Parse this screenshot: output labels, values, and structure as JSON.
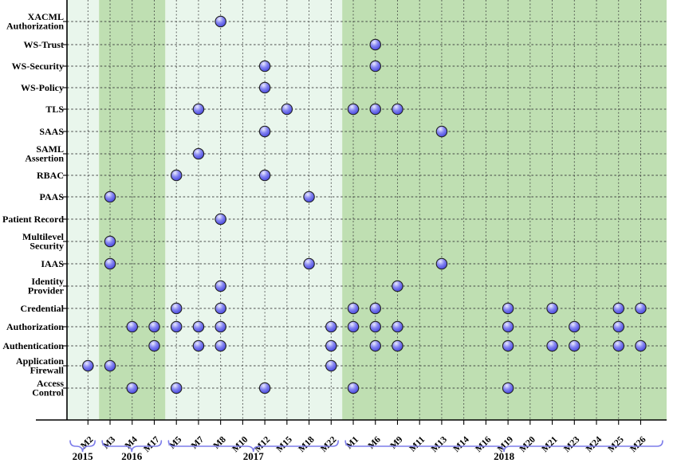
{
  "chart_data": {
    "type": "scatter",
    "title": "",
    "xlabel": "",
    "ylabel": "",
    "grid": "dashed",
    "legend": "none",
    "x_axis": {
      "milestones": [
        "M2",
        "M3",
        "M4",
        "M17",
        "M5",
        "M7",
        "M8",
        "M10",
        "M12",
        "M15",
        "M18",
        "M22",
        "M1",
        "M6",
        "M9",
        "M11",
        "M13",
        "M14",
        "M16",
        "M19",
        "M20",
        "M21",
        "M23",
        "M24",
        "M25",
        "M26"
      ],
      "year_groups": [
        {
          "label": "2015",
          "milestones": [
            "M2"
          ]
        },
        {
          "label": "2016",
          "milestones": [
            "M3",
            "M4",
            "M17"
          ]
        },
        {
          "label": "2017",
          "milestones": [
            "M5",
            "M7",
            "M8",
            "M10",
            "M12",
            "M15",
            "M18",
            "M22"
          ]
        },
        {
          "label": "2018",
          "milestones": [
            "M1",
            "M6",
            "M9",
            "M11",
            "M13",
            "M14",
            "M16",
            "M19",
            "M20",
            "M21",
            "M23",
            "M24",
            "M25",
            "M26"
          ]
        }
      ]
    },
    "y_axis": {
      "concepts": [
        {
          "name": "XACML Authorization",
          "label_lines": [
            "XACML",
            "Authorization"
          ]
        },
        {
          "name": "WS-Trust",
          "label_lines": [
            "WS-Trust"
          ]
        },
        {
          "name": "WS-Security",
          "label_lines": [
            "WS-Security"
          ]
        },
        {
          "name": "WS-Policy",
          "label_lines": [
            "WS-Policy"
          ]
        },
        {
          "name": "TLS",
          "label_lines": [
            "TLS"
          ]
        },
        {
          "name": "SAAS",
          "label_lines": [
            "SAAS"
          ]
        },
        {
          "name": "SAML Assertion",
          "label_lines": [
            "SAML",
            "Assertion"
          ]
        },
        {
          "name": "RBAC",
          "label_lines": [
            "RBAC"
          ]
        },
        {
          "name": "PAAS",
          "label_lines": [
            "PAAS"
          ]
        },
        {
          "name": "Patient Record",
          "label_lines": [
            "Patient Record"
          ]
        },
        {
          "name": "Multilevel Security",
          "label_lines": [
            "Multilevel",
            "Security"
          ]
        },
        {
          "name": "IAAS",
          "label_lines": [
            "IAAS"
          ]
        },
        {
          "name": "Identity Provider",
          "label_lines": [
            "Identity",
            "Provider"
          ]
        },
        {
          "name": "Credential",
          "label_lines": [
            "Credential"
          ]
        },
        {
          "name": "Authorization",
          "label_lines": [
            "Authorization"
          ]
        },
        {
          "name": "Authentication",
          "label_lines": [
            "Authentication"
          ]
        },
        {
          "name": "Application Firewall",
          "label_lines": [
            "Application",
            "Firewall"
          ]
        },
        {
          "name": "Access Control",
          "label_lines": [
            "Access",
            "Control"
          ]
        }
      ]
    },
    "points": [
      {
        "milestone": "M2",
        "concept": "Application Firewall"
      },
      {
        "milestone": "M3",
        "concept": "PAAS"
      },
      {
        "milestone": "M3",
        "concept": "Multilevel Security"
      },
      {
        "milestone": "M3",
        "concept": "IAAS"
      },
      {
        "milestone": "M3",
        "concept": "Application Firewall"
      },
      {
        "milestone": "M4",
        "concept": "Authorization"
      },
      {
        "milestone": "M4",
        "concept": "Access Control"
      },
      {
        "milestone": "M17",
        "concept": "Authorization"
      },
      {
        "milestone": "M17",
        "concept": "Authentication"
      },
      {
        "milestone": "M5",
        "concept": "RBAC"
      },
      {
        "milestone": "M5",
        "concept": "Credential"
      },
      {
        "milestone": "M5",
        "concept": "Authorization"
      },
      {
        "milestone": "M5",
        "concept": "Access Control"
      },
      {
        "milestone": "M7",
        "concept": "TLS"
      },
      {
        "milestone": "M7",
        "concept": "SAML Assertion"
      },
      {
        "milestone": "M7",
        "concept": "Authorization"
      },
      {
        "milestone": "M7",
        "concept": "Authentication"
      },
      {
        "milestone": "M8",
        "concept": "XACML Authorization"
      },
      {
        "milestone": "M8",
        "concept": "Patient Record"
      },
      {
        "milestone": "M8",
        "concept": "Identity Provider"
      },
      {
        "milestone": "M8",
        "concept": "Credential"
      },
      {
        "milestone": "M8",
        "concept": "Authorization"
      },
      {
        "milestone": "M8",
        "concept": "Authentication"
      },
      {
        "milestone": "M12",
        "concept": "WS-Security"
      },
      {
        "milestone": "M12",
        "concept": "WS-Policy"
      },
      {
        "milestone": "M12",
        "concept": "SAAS"
      },
      {
        "milestone": "M12",
        "concept": "RBAC"
      },
      {
        "milestone": "M12",
        "concept": "Access Control"
      },
      {
        "milestone": "M15",
        "concept": "TLS"
      },
      {
        "milestone": "M18",
        "concept": "PAAS"
      },
      {
        "milestone": "M18",
        "concept": "IAAS"
      },
      {
        "milestone": "M22",
        "concept": "Authorization"
      },
      {
        "milestone": "M22",
        "concept": "Authentication"
      },
      {
        "milestone": "M22",
        "concept": "Application Firewall"
      },
      {
        "milestone": "M1",
        "concept": "TLS"
      },
      {
        "milestone": "M1",
        "concept": "Credential"
      },
      {
        "milestone": "M1",
        "concept": "Authorization"
      },
      {
        "milestone": "M1",
        "concept": "Access Control"
      },
      {
        "milestone": "M6",
        "concept": "WS-Trust"
      },
      {
        "milestone": "M6",
        "concept": "WS-Security"
      },
      {
        "milestone": "M6",
        "concept": "TLS"
      },
      {
        "milestone": "M6",
        "concept": "Credential"
      },
      {
        "milestone": "M6",
        "concept": "Authorization"
      },
      {
        "milestone": "M6",
        "concept": "Authentication"
      },
      {
        "milestone": "M9",
        "concept": "TLS"
      },
      {
        "milestone": "M9",
        "concept": "Identity Provider"
      },
      {
        "milestone": "M9",
        "concept": "Authorization"
      },
      {
        "milestone": "M9",
        "concept": "Authentication"
      },
      {
        "milestone": "M13",
        "concept": "SAAS"
      },
      {
        "milestone": "M13",
        "concept": "IAAS"
      },
      {
        "milestone": "M19",
        "concept": "Credential"
      },
      {
        "milestone": "M19",
        "concept": "Authorization"
      },
      {
        "milestone": "M19",
        "concept": "Authentication"
      },
      {
        "milestone": "M19",
        "concept": "Access Control"
      },
      {
        "milestone": "M21",
        "concept": "Credential"
      },
      {
        "milestone": "M21",
        "concept": "Authentication"
      },
      {
        "milestone": "M23",
        "concept": "Authorization"
      },
      {
        "milestone": "M23",
        "concept": "Authentication"
      },
      {
        "milestone": "M25",
        "concept": "Credential"
      },
      {
        "milestone": "M25",
        "concept": "Authorization"
      },
      {
        "milestone": "M25",
        "concept": "Authentication"
      },
      {
        "milestone": "M26",
        "concept": "Credential"
      },
      {
        "milestone": "M26",
        "concept": "Authentication"
      }
    ],
    "colors": {
      "band_light": "#e9f6ec",
      "band_dark": "#bfdfb2",
      "grid_line": "#3a3a3a",
      "axis_line": "#000000",
      "dot_center": "#ebebff",
      "dot_mid": "#8585f2",
      "dot_edge": "#3c3cd8",
      "dot_stroke": "#222222",
      "brace": "#7d7dea",
      "text": "#000000"
    }
  }
}
